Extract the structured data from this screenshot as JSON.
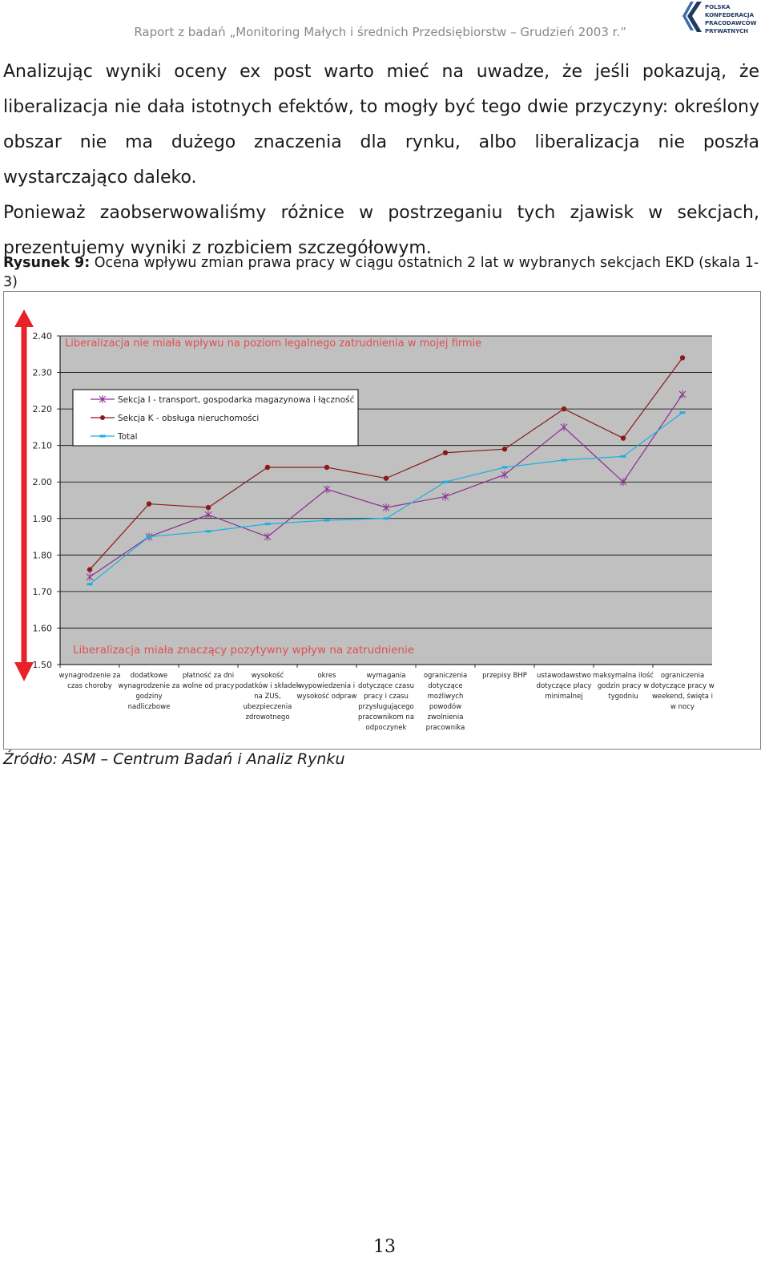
{
  "header": {
    "report_title": "Raport z badań „Monitoring Małych i średnich Przedsiębiorstw – Grudzień 2003 r.”",
    "logo_lines": [
      "POLSKA",
      "KONFEDERACJA",
      "PRACODAWCÓW",
      "PRYWATNYCH"
    ],
    "logo_icon": "pkpp-logo-icon"
  },
  "body": {
    "paragraph1": "Analizując wyniki oceny ex post warto mieć na uwadze, że jeśli pokazują, że liberalizacja nie dała istotnych efektów, to mogły być tego dwie przyczyny: określony obszar nie ma dużego znaczenia dla rynku, albo liberalizacja nie poszła wystarczająco daleko.",
    "paragraph2": "Ponieważ zaobserwowaliśmy różnice w postrzeganiu tych zjawisk w sekcjach, prezentujemy wyniki z rozbiciem szczegółowym."
  },
  "figure": {
    "caption_label": "Rysunek 9:",
    "caption_text": " Ocena wpływu zmian prawa pracy w ciągu ostatnich 2 lat w wybranych sekcjach EKD (skala 1-3)",
    "source": "Źródło: ASM – Centrum Badań i Analiz Rynku"
  },
  "chart_data": {
    "type": "line",
    "annotation_top": "Liberalizacja nie miała wpływu na poziom legalnego zatrudnienia w mojej firmie",
    "annotation_bottom": "Liberalizacja miała znaczący pozytywny wpływ na zatrudnienie",
    "ylim": [
      1.5,
      2.4
    ],
    "yticks": [
      "1.50",
      "1.60",
      "1.70",
      "1.80",
      "1.90",
      "2.00",
      "2.10",
      "2.20",
      "2.30",
      "2.40"
    ],
    "grid": true,
    "legend_position": "top-left",
    "categories": [
      [
        "wynagrodzenie za",
        "czas choroby"
      ],
      [
        "dodatkowe",
        "wynagrodzenie za",
        "godziny",
        "nadliczbowe"
      ],
      [
        "płatność za dni",
        "wolne od pracy"
      ],
      [
        "wysokość",
        "podatków i składek",
        "na ZUS,",
        "ubezpieczenia",
        "zdrowotnego"
      ],
      [
        "okres",
        "wypowiedzenia i",
        "wysokość odpraw"
      ],
      [
        "wymagania",
        "dotyczące czasu",
        "pracy i czasu",
        "przysługującego",
        "pracownikom na",
        "odpoczynek"
      ],
      [
        "ograniczenia",
        "dotyczące",
        "możliwych",
        "powodów",
        "zwolnienia",
        "pracownika"
      ],
      [
        "przepisy BHP"
      ],
      [
        "ustawodawstwo",
        "dotyczące płacy",
        "minimalnej"
      ],
      [
        "maksymalna ilość",
        "godzin pracy w",
        "tygodniu"
      ],
      [
        "ograniczenia",
        "dotyczące pracy w",
        "weekend, święta i",
        "w nocy"
      ]
    ],
    "series": [
      {
        "name": "Sekcja I - transport, gospodarka magazynowa i łączność",
        "color": "#8b2f8f",
        "marker": "star",
        "values": [
          1.74,
          1.85,
          1.91,
          1.85,
          1.98,
          1.93,
          1.96,
          2.02,
          2.15,
          2.0,
          2.24
        ]
      },
      {
        "name": "Sekcja K - obsługa nieruchomości",
        "color": "#8b1a1a",
        "marker": "circle",
        "values": [
          1.76,
          1.94,
          1.93,
          2.04,
          2.04,
          2.01,
          2.08,
          2.09,
          2.2,
          2.12,
          2.34
        ]
      },
      {
        "name": "Total",
        "color": "#1ab0e0",
        "marker": "dash",
        "values": [
          1.72,
          1.85,
          1.865,
          1.885,
          1.895,
          1.9,
          2.0,
          2.04,
          2.06,
          2.07,
          2.19
        ]
      }
    ]
  },
  "page": {
    "number": "13"
  }
}
